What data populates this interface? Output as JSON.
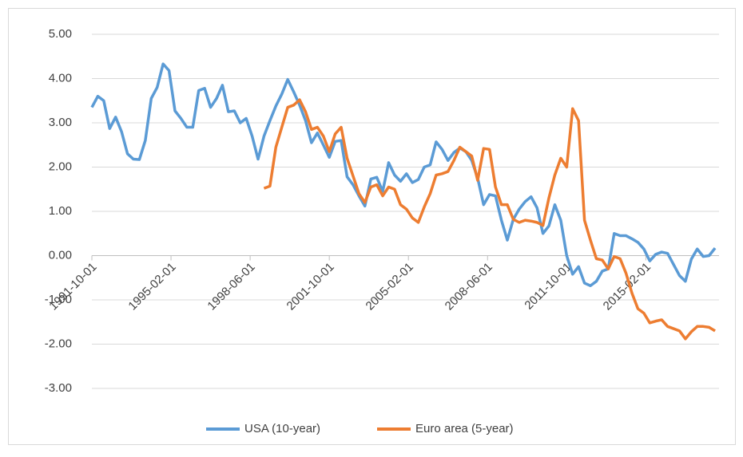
{
  "chart_data": {
    "type": "line",
    "x": [
      "1991-10-01",
      "1992-01-01",
      "1992-04-01",
      "1992-07-01",
      "1992-10-01",
      "1993-01-01",
      "1993-04-01",
      "1993-07-01",
      "1993-10-01",
      "1994-01-01",
      "1994-04-01",
      "1994-07-01",
      "1994-10-01",
      "1995-01-01",
      "1995-04-01",
      "1995-07-01",
      "1995-10-01",
      "1996-01-01",
      "1996-04-01",
      "1996-07-01",
      "1996-10-01",
      "1997-01-01",
      "1997-04-01",
      "1997-07-01",
      "1997-10-01",
      "1998-01-01",
      "1998-04-01",
      "1998-07-01",
      "1998-10-01",
      "1999-01-01",
      "1999-04-01",
      "1999-07-01",
      "1999-10-01",
      "2000-01-01",
      "2000-04-01",
      "2000-07-01",
      "2000-10-01",
      "2001-01-01",
      "2001-04-01",
      "2001-07-01",
      "2001-10-01",
      "2002-01-01",
      "2002-04-01",
      "2002-07-01",
      "2002-10-01",
      "2003-01-01",
      "2003-04-01",
      "2003-07-01",
      "2003-10-01",
      "2004-01-01",
      "2004-04-01",
      "2004-07-01",
      "2004-10-01",
      "2005-01-01",
      "2005-04-01",
      "2005-07-01",
      "2005-10-01",
      "2006-01-01",
      "2006-04-01",
      "2006-07-01",
      "2006-10-01",
      "2007-01-01",
      "2007-04-01",
      "2007-07-01",
      "2007-10-01",
      "2008-01-01",
      "2008-04-01",
      "2008-07-01",
      "2008-10-01",
      "2009-01-01",
      "2009-04-01",
      "2009-07-01",
      "2009-10-01",
      "2010-01-01",
      "2010-04-01",
      "2010-07-01",
      "2010-10-01",
      "2011-01-01",
      "2011-04-01",
      "2011-07-01",
      "2011-10-01",
      "2012-01-01",
      "2012-04-01",
      "2012-07-01",
      "2012-10-01",
      "2013-01-01",
      "2013-04-01",
      "2013-07-01",
      "2013-10-01",
      "2014-01-01",
      "2014-04-01",
      "2014-07-01",
      "2014-10-01",
      "2015-01-01",
      "2015-04-01",
      "2015-07-01",
      "2015-10-01",
      "2016-01-01",
      "2016-04-01",
      "2016-07-01",
      "2016-10-01",
      "2017-01-01",
      "2017-04-01",
      "2017-07-01",
      "2017-10-01",
      "2018-01-01"
    ],
    "series": [
      {
        "name": "USA (10-year)",
        "color": "#5b9bd5",
        "values": [
          3.35,
          3.6,
          3.5,
          2.87,
          3.13,
          2.8,
          2.3,
          2.18,
          2.17,
          2.6,
          3.55,
          3.8,
          4.33,
          4.18,
          3.27,
          3.1,
          2.9,
          2.9,
          3.73,
          3.78,
          3.35,
          3.55,
          3.85,
          3.25,
          3.27,
          3.0,
          3.1,
          2.7,
          2.18,
          2.7,
          3.05,
          3.38,
          3.65,
          3.98,
          3.7,
          3.4,
          3.05,
          2.55,
          2.77,
          2.5,
          2.22,
          2.58,
          2.6,
          1.78,
          1.6,
          1.35,
          1.12,
          1.73,
          1.77,
          1.45,
          2.1,
          1.82,
          1.68,
          1.85,
          1.65,
          1.72,
          2.0,
          2.05,
          2.57,
          2.4,
          2.15,
          2.33,
          2.43,
          2.35,
          2.15,
          1.75,
          1.15,
          1.38,
          1.35,
          0.8,
          0.35,
          0.82,
          1.05,
          1.22,
          1.33,
          1.08,
          0.5,
          0.67,
          1.15,
          0.8,
          0.0,
          -0.42,
          -0.25,
          -0.62,
          -0.68,
          -0.58,
          -0.35,
          -0.3,
          0.5,
          0.45,
          0.45,
          0.38,
          0.3,
          0.15,
          -0.12,
          0.03,
          0.08,
          0.05,
          -0.2,
          -0.45,
          -0.58,
          -0.08,
          0.15,
          -0.02,
          0.0,
          0.17
        ]
      },
      {
        "name": "Euro area (5-year)",
        "color": "#ed7d31",
        "values": [
          null,
          null,
          null,
          null,
          null,
          null,
          null,
          null,
          null,
          null,
          null,
          null,
          null,
          null,
          null,
          null,
          null,
          null,
          null,
          null,
          null,
          null,
          null,
          null,
          null,
          null,
          null,
          null,
          null,
          1.52,
          1.57,
          2.45,
          2.9,
          3.35,
          3.4,
          3.52,
          3.25,
          2.85,
          2.9,
          2.7,
          2.35,
          2.75,
          2.9,
          2.2,
          1.8,
          1.4,
          1.2,
          1.55,
          1.6,
          1.35,
          1.55,
          1.5,
          1.15,
          1.05,
          0.85,
          0.75,
          1.1,
          1.4,
          1.82,
          1.85,
          1.9,
          2.15,
          2.45,
          2.35,
          2.25,
          1.7,
          2.42,
          2.4,
          1.55,
          1.15,
          1.15,
          0.82,
          0.75,
          0.8,
          0.78,
          0.75,
          0.68,
          1.3,
          1.82,
          2.2,
          2.0,
          3.32,
          3.05,
          0.8,
          0.35,
          -0.07,
          -0.1,
          -0.3,
          -0.02,
          -0.07,
          -0.4,
          -0.85,
          -1.2,
          -1.3,
          -1.52,
          -1.48,
          -1.45,
          -1.6,
          -1.65,
          -1.7,
          -1.88,
          -1.72,
          -1.6,
          -1.6,
          -1.62,
          -1.7
        ]
      }
    ],
    "xlim": [
      "1991-10-01",
      "2018-03-01"
    ],
    "xticks": [
      "1991-10-01",
      "1995-02-01",
      "1998-06-01",
      "2001-10-01",
      "2005-02-01",
      "2008-06-01",
      "2011-10-01",
      "2015-02-01"
    ],
    "ylim": [
      -3,
      5
    ],
    "yticks": [
      {
        "value": -3,
        "label": "-3.00"
      },
      {
        "value": -2,
        "label": "-2.00"
      },
      {
        "value": -1,
        "label": "-1.00"
      },
      {
        "value": 0,
        "label": "0.00"
      },
      {
        "value": 1,
        "label": "1.00"
      },
      {
        "value": 2,
        "label": "2.00"
      },
      {
        "value": 3,
        "label": "3.00"
      },
      {
        "value": 4,
        "label": "4.00"
      },
      {
        "value": 5,
        "label": "5.00"
      }
    ],
    "grid": true,
    "legend": "bottom"
  }
}
